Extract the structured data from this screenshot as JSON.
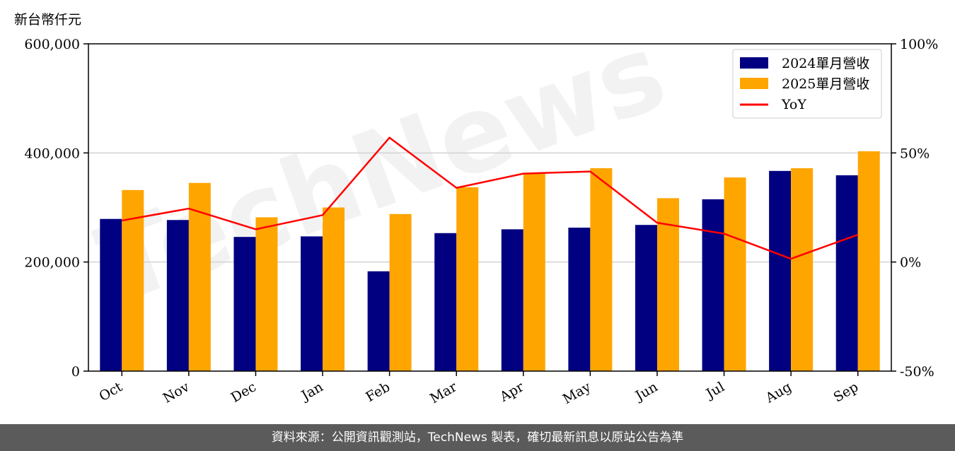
{
  "footer": {
    "source_text": "資料來源：公開資訊觀測站，TechNews 製表，確切最新訊息以原站公告為準"
  },
  "watermark": {
    "text": "TechNews"
  },
  "colors": {
    "series_2024": "#000080",
    "series_2025": "#ffa500",
    "yoy": "#ff0000",
    "footer_bg": "#5b5b5b",
    "grid": "#d3d3d3"
  },
  "chart_data": {
    "type": "bar",
    "unit_label": "新台幣仟元",
    "categories": [
      "Oct",
      "Nov",
      "Dec",
      "Jan",
      "Feb",
      "Mar",
      "Apr",
      "May",
      "Jun",
      "Jul",
      "Aug",
      "Sep"
    ],
    "series": [
      {
        "name": "2024單月營收",
        "values": [
          279000,
          277000,
          246000,
          247000,
          183000,
          253000,
          260000,
          263000,
          268000,
          315000,
          367000,
          359000
        ]
      },
      {
        "name": "2025單月營收",
        "values": [
          332000,
          345000,
          282000,
          300000,
          288000,
          337000,
          363000,
          372000,
          317000,
          355000,
          372000,
          403000
        ]
      }
    ],
    "line_series": {
      "name": "YoY",
      "axis": "right",
      "values": [
        19.0,
        24.5,
        15.0,
        21.5,
        57.0,
        34.0,
        40.5,
        41.5,
        18.0,
        13.0,
        1.5,
        12.5
      ]
    },
    "y_left": {
      "ylim": [
        0,
        600000
      ],
      "ticks": [
        0,
        200000,
        400000,
        600000
      ],
      "tick_labels": [
        "0",
        "200,000",
        "400,000",
        "600,000"
      ]
    },
    "y_right": {
      "ylim": [
        -50,
        100
      ],
      "ticks": [
        -50,
        0,
        50,
        100
      ],
      "tick_labels": [
        "-50%",
        "0%",
        "50%",
        "100%"
      ]
    },
    "grid": "horizontal",
    "legend_position": "top-right"
  }
}
